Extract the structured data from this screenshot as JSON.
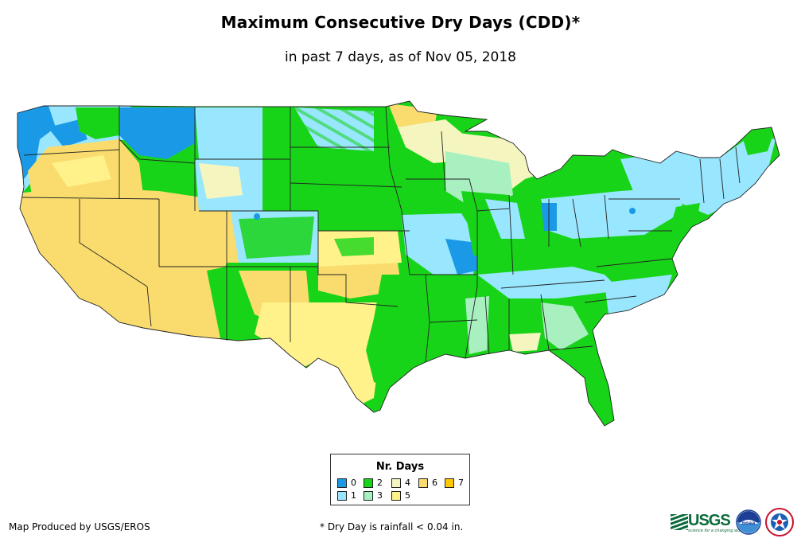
{
  "title": "Maximum Consecutive Dry Days (CDD)*",
  "subtitle": "in past 7 days, as of Nov 05, 2018",
  "legend": {
    "title": "Nr. Days",
    "items": [
      {
        "label": "0",
        "color": "#1a9ae6"
      },
      {
        "label": "1",
        "color": "#99e6ff"
      },
      {
        "label": "2",
        "color": "#18d418"
      },
      {
        "label": "3",
        "color": "#a8f0c0"
      },
      {
        "label": "4",
        "color": "#f5f5c0"
      },
      {
        "label": "5",
        "color": "#fff28a"
      },
      {
        "label": "6",
        "color": "#fadc6e"
      },
      {
        "label": "7",
        "color": "#ffc800"
      }
    ]
  },
  "credit": "Map Produced by USGS/EROS",
  "footnote": "* Dry Day is rainfall < 0.04 in.",
  "logos": {
    "usgs": "USGS",
    "usgs_tagline": "science for a changing world",
    "noaa": "noaa"
  }
}
